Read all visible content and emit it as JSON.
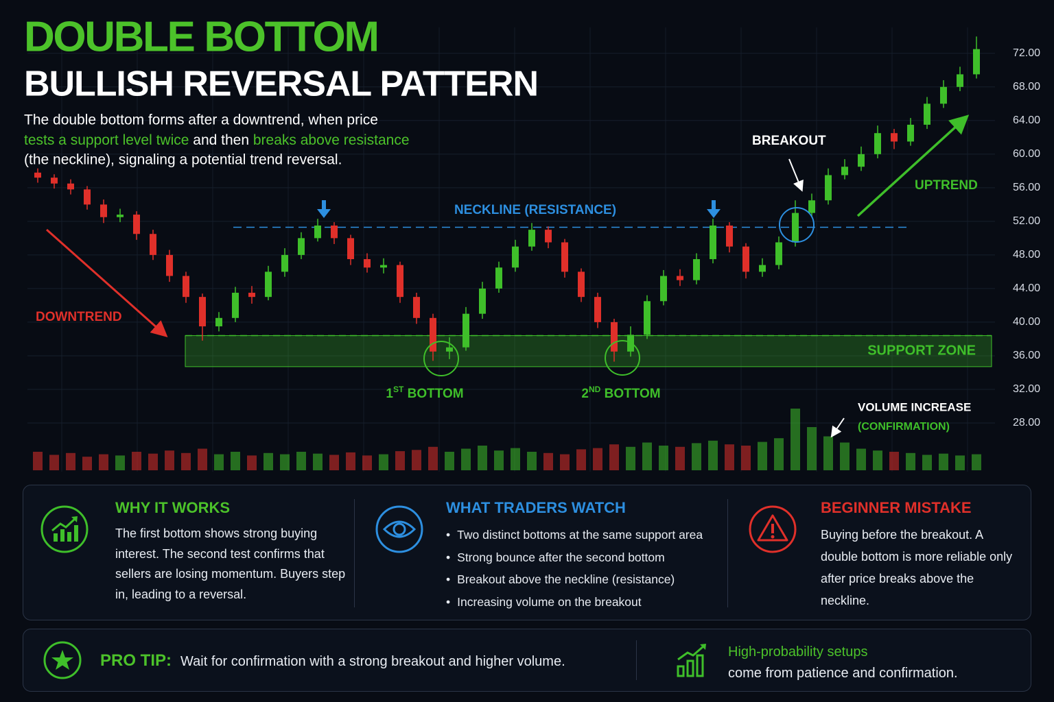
{
  "chart_data": {
    "type": "candlestick",
    "title": "DOUBLE BOTTOM",
    "subtitle": "BULLISH REVERSAL PATTERN",
    "description": {
      "line1": "The double bottom forms after a downtrend, when price",
      "line2": [
        "tests a support level twice",
        " and then ",
        "breaks above resistance"
      ],
      "line3": "(the neckline), signaling a potential trend reversal."
    },
    "up_color": "#3fbf2a",
    "down_color": "#e0302a",
    "ylim": [
      24,
      75
    ],
    "yticks": [
      {
        "value": 28,
        "label": "28.00"
      },
      {
        "value": 32,
        "label": "32.00"
      },
      {
        "value": 36,
        "label": "36.00"
      },
      {
        "value": 40,
        "label": "40.00"
      },
      {
        "value": 44,
        "label": "44.00"
      },
      {
        "value": 48,
        "label": "48.00"
      },
      {
        "value": 52,
        "label": "52.00"
      },
      {
        "value": 56,
        "label": "56.00"
      },
      {
        "value": 60,
        "label": "60.00"
      },
      {
        "value": 64,
        "label": "64.00"
      },
      {
        "value": 68,
        "label": "68.00"
      },
      {
        "value": 72,
        "label": "72.00"
      }
    ],
    "grid": true,
    "open": [
      57.8,
      57.2,
      56.5,
      55.8,
      54.0,
      52.5,
      52.8,
      50.5,
      48.0,
      45.5,
      43.0,
      39.5,
      40.5,
      43.5,
      43.0,
      46.0,
      48.0,
      50.0,
      51.5,
      50.0,
      47.5,
      46.5,
      46.8,
      43.0,
      40.5,
      36.5,
      37.0,
      41.0,
      44.0,
      46.5,
      49.0,
      51.0,
      49.5,
      46.0,
      43.0,
      40.0,
      36.5,
      38.5,
      42.5,
      45.5,
      45.0,
      47.5,
      51.5,
      49.0,
      46.0,
      46.8,
      49.5,
      53.0,
      54.5,
      57.5,
      58.5,
      60.0,
      62.5,
      61.5,
      63.5,
      66.0,
      68.0,
      69.5
    ],
    "high": [
      58.3,
      57.6,
      57.0,
      56.2,
      54.6,
      53.5,
      53.2,
      51.0,
      48.6,
      46.0,
      43.4,
      41.2,
      44.2,
      44.3,
      46.7,
      48.8,
      50.7,
      52.3,
      51.9,
      50.4,
      48.2,
      47.6,
      47.2,
      43.5,
      41.0,
      38.2,
      41.8,
      44.8,
      47.2,
      49.8,
      51.8,
      51.4,
      49.9,
      46.4,
      43.5,
      40.4,
      39.5,
      43.2,
      46.2,
      46.3,
      48.2,
      52.3,
      51.9,
      49.4,
      47.6,
      50.2,
      54.5,
      55.3,
      58.3,
      59.4,
      60.9,
      63.4,
      63.0,
      64.3,
      66.8,
      68.8,
      70.4,
      74.0
    ],
    "low": [
      56.6,
      55.9,
      55.2,
      53.4,
      51.8,
      51.9,
      49.8,
      47.4,
      44.8,
      42.3,
      37.8,
      38.9,
      40.0,
      42.2,
      42.6,
      45.4,
      47.5,
      49.6,
      49.3,
      46.8,
      45.9,
      45.8,
      42.3,
      39.8,
      35.4,
      35.6,
      36.6,
      40.4,
      43.5,
      46.0,
      48.5,
      48.8,
      45.3,
      42.4,
      39.3,
      35.3,
      35.9,
      38.0,
      42.0,
      44.3,
      44.5,
      47.0,
      48.3,
      45.2,
      45.4,
      46.3,
      49.0,
      52.5,
      54.0,
      57.0,
      58.0,
      59.5,
      60.6,
      61.0,
      63.0,
      65.5,
      67.5,
      69.0
    ],
    "close": [
      57.2,
      56.5,
      55.8,
      54.0,
      52.5,
      52.8,
      50.5,
      48.0,
      45.5,
      43.0,
      39.5,
      40.5,
      43.5,
      43.0,
      46.0,
      48.0,
      50.0,
      51.5,
      50.0,
      47.5,
      46.5,
      46.8,
      43.0,
      40.5,
      36.5,
      37.0,
      41.0,
      44.0,
      46.5,
      49.0,
      51.0,
      49.5,
      46.0,
      43.0,
      40.0,
      36.5,
      38.5,
      42.5,
      45.5,
      45.0,
      47.5,
      51.5,
      49.0,
      46.0,
      46.8,
      49.5,
      53.0,
      54.5,
      57.5,
      58.5,
      60.0,
      62.5,
      61.5,
      63.5,
      66.0,
      68.0,
      69.5,
      72.5
    ],
    "volume": [
      30,
      25,
      28,
      22,
      26,
      24,
      30,
      27,
      32,
      28,
      35,
      26,
      30,
      24,
      28,
      26,
      30,
      27,
      25,
      29,
      24,
      26,
      31,
      33,
      38,
      30,
      35,
      40,
      32,
      36,
      30,
      28,
      26,
      34,
      36,
      42,
      38,
      45,
      40,
      38,
      44,
      48,
      42,
      40,
      46,
      52,
      100,
      70,
      55,
      45,
      35,
      32,
      30,
      28,
      25,
      27,
      24,
      26
    ],
    "neckline": {
      "value": 51.3,
      "label": "NECKLINE (RESISTANCE)"
    },
    "support_zone": {
      "range": [
        34.7,
        38.4
      ],
      "label": "SUPPORT ZONE"
    },
    "annotations": {
      "downtrend": "DOWNTREND",
      "uptrend": "UPTREND",
      "breakout": "BREAKOUT",
      "bottom1": [
        "1",
        "ST",
        " BOTTOM"
      ],
      "bottom2": [
        "2",
        "ND",
        " BOTTOM"
      ],
      "volume": "VOLUME INCREASE",
      "volume_note": "(CONFIRMATION)"
    }
  },
  "panels": [
    {
      "title": "WHY IT WORKS",
      "body": "The first bottom shows strong buying interest. The second test confirms that sellers are losing momentum. Buyers step in, leading to a reversal."
    },
    {
      "title": "WHAT TRADERS WATCH",
      "bullets": [
        "Two distinct bottoms at the same support area",
        "Strong bounce after the second bottom",
        "Breakout above the neckline (resistance)",
        "Increasing volume on the breakout"
      ]
    },
    {
      "title": "BEGINNER MISTAKE",
      "body": "Buying before the breakout. A double bottom is more reliable only after price breaks above the neckline."
    }
  ],
  "pro_tip": {
    "label": "PRO TIP:",
    "text": "Wait for confirmation with a strong breakout and higher volume.",
    "side_highlight": "High-probability setups",
    "side_text": "come from patience and confirmation."
  }
}
